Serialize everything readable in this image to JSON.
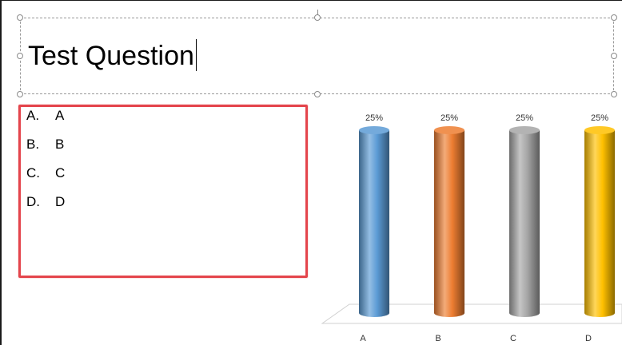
{
  "slide": {
    "title": "Test Question"
  },
  "answers": [
    {
      "letter": "A.",
      "text": "A"
    },
    {
      "letter": "B.",
      "text": "B"
    },
    {
      "letter": "C.",
      "text": "C"
    },
    {
      "letter": "D.",
      "text": "D"
    }
  ],
  "chart_data": {
    "type": "bar",
    "categories": [
      "A",
      "B",
      "C",
      "D"
    ],
    "values": [
      25,
      25,
      25,
      25
    ],
    "data_labels": [
      "25%",
      "25%",
      "25%",
      "25%"
    ],
    "colors": [
      "#5b9bd5",
      "#ed7d31",
      "#a5a5a5",
      "#ffc000"
    ],
    "ylim": [
      0,
      25
    ],
    "grid": false,
    "legend": "none",
    "style": "3d-cylinder"
  }
}
